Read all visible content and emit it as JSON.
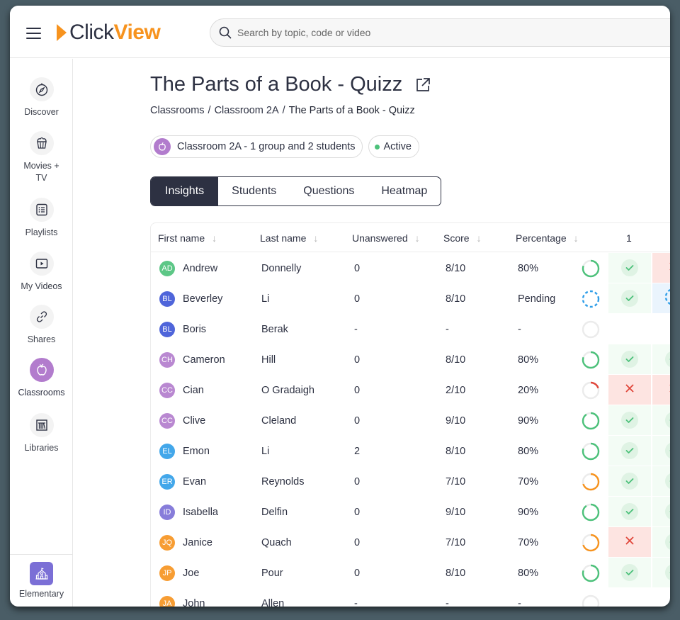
{
  "header": {
    "logo": {
      "part1": "Click",
      "part2": "View"
    },
    "search": {
      "placeholder": "Search by topic, code or video"
    }
  },
  "sidebar": {
    "items": [
      {
        "label": "Discover",
        "icon": "compass-icon"
      },
      {
        "label": "Movies +",
        "label2": "TV",
        "icon": "popcorn-icon"
      },
      {
        "label": "Playlists",
        "icon": "list-icon"
      },
      {
        "label": "My Videos",
        "icon": "play-icon"
      },
      {
        "label": "Shares",
        "icon": "link-icon"
      },
      {
        "label": "Classrooms",
        "icon": "apple-icon",
        "active": true
      },
      {
        "label": "Libraries",
        "icon": "library-icon"
      }
    ],
    "bottom": {
      "label": "Elementary",
      "icon": "school-icon"
    }
  },
  "page": {
    "title": "The Parts of a Book - Quizz",
    "breadcrumb": [
      "Classrooms",
      "Classroom 2A",
      "The Parts of a Book - Quizz"
    ],
    "classroom_chip": "Classroom 2A - 1 group and 2 students",
    "status_chip": "Active"
  },
  "tabs": [
    {
      "label": "Insights",
      "active": true
    },
    {
      "label": "Students"
    },
    {
      "label": "Questions"
    },
    {
      "label": "Heatmap"
    }
  ],
  "table": {
    "headers": [
      "First name",
      "Last name",
      "Unanswered",
      "Score",
      "Percentage",
      "1"
    ],
    "rows": [
      {
        "initials": "AD",
        "color": "#4cc17a",
        "first": "Andrew",
        "last": "Donnelly",
        "unanswered": "0",
        "score": "8/10",
        "percentage": "80%",
        "ring": "green",
        "ring_pct": 80,
        "q1": "correct",
        "q2": "wrong"
      },
      {
        "initials": "BL",
        "color": "#3d55d6",
        "first": "Beverley",
        "last": "Li",
        "unanswered": "0",
        "score": "8/10",
        "percentage": "Pending",
        "ring": "pending",
        "ring_pct": 0,
        "q1": "correct",
        "q2": "pending"
      },
      {
        "initials": "BL",
        "color": "#3d55d6",
        "first": "Boris",
        "last": "Berak",
        "unanswered": "-",
        "score": "-",
        "percentage": "-",
        "ring": "empty",
        "ring_pct": 0,
        "q1": "none",
        "q2": "none"
      },
      {
        "initials": "CH",
        "color": "#b27ccd",
        "first": "Cameron",
        "last": "Hill",
        "unanswered": "0",
        "score": "8/10",
        "percentage": "80%",
        "ring": "green",
        "ring_pct": 80,
        "q1": "correct",
        "q2": "correct"
      },
      {
        "initials": "CC",
        "color": "#b27ccd",
        "first": "Cian",
        "last": "O Gradaigh",
        "unanswered": "0",
        "score": "2/10",
        "percentage": "20%",
        "ring": "red",
        "ring_pct": 20,
        "q1": "wrong",
        "q2": "wrong"
      },
      {
        "initials": "CC",
        "color": "#b27ccd",
        "first": "Clive",
        "last": "Cleland",
        "unanswered": "0",
        "score": "9/10",
        "percentage": "90%",
        "ring": "green",
        "ring_pct": 90,
        "q1": "correct",
        "q2": "correct"
      },
      {
        "initials": "EL",
        "color": "#2f9ee8",
        "first": "Emon",
        "last": "Li",
        "unanswered": "2",
        "score": "8/10",
        "percentage": "80%",
        "ring": "green",
        "ring_pct": 80,
        "q1": "correct",
        "q2": "correct"
      },
      {
        "initials": "ER",
        "color": "#2f9ee8",
        "first": "Evan",
        "last": "Reynolds",
        "unanswered": "0",
        "score": "7/10",
        "percentage": "70%",
        "ring": "orange",
        "ring_pct": 70,
        "q1": "correct",
        "q2": "correct"
      },
      {
        "initials": "ID",
        "color": "#7b6fd6",
        "first": "Isabella",
        "last": "Delfin",
        "unanswered": "0",
        "score": "9/10",
        "percentage": "90%",
        "ring": "green",
        "ring_pct": 90,
        "q1": "correct",
        "q2": "correct"
      },
      {
        "initials": "JQ",
        "color": "#f7931e",
        "first": "Janice",
        "last": "Quach",
        "unanswered": "0",
        "score": "7/10",
        "percentage": "70%",
        "ring": "orange",
        "ring_pct": 70,
        "q1": "wrong",
        "q2": "correct"
      },
      {
        "initials": "JP",
        "color": "#f7931e",
        "first": "Joe",
        "last": "Pour",
        "unanswered": "0",
        "score": "8/10",
        "percentage": "80%",
        "ring": "green",
        "ring_pct": 80,
        "q1": "correct",
        "q2": "correct"
      },
      {
        "initials": "JA",
        "color": "#f7931e",
        "first": "John",
        "last": "Allen",
        "unanswered": "-",
        "score": "-",
        "percentage": "-",
        "ring": "empty",
        "ring_pct": 0,
        "q1": "none",
        "q2": "none"
      }
    ]
  },
  "colors": {
    "brand": "#f7931e",
    "dark": "#2d3142",
    "classroom_accent": "#b27ccd",
    "success": "#4cc17a",
    "error": "#e0463a",
    "warning": "#f7931e",
    "pending": "#2f9ee8"
  }
}
